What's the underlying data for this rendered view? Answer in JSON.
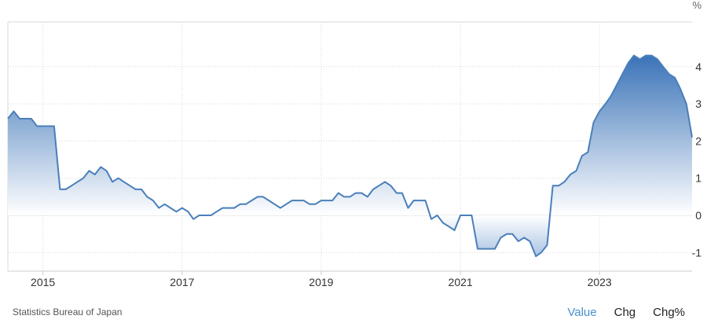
{
  "chart_data": {
    "type": "area",
    "unit_label": "%",
    "ylim": [
      -1.5,
      5.2
    ],
    "xlim": [
      "2014-07-01",
      "2024-05-01"
    ],
    "y_ticks": [
      -1,
      0,
      1,
      2,
      3,
      4
    ],
    "x_ticks": [
      {
        "date": "2015-01-01",
        "label": "2015"
      },
      {
        "date": "2017-01-01",
        "label": "2017"
      },
      {
        "date": "2019-01-01",
        "label": "2019"
      },
      {
        "date": "2021-01-01",
        "label": "2021"
      },
      {
        "date": "2023-01-01",
        "label": "2023"
      }
    ],
    "grid": true,
    "points": [
      [
        "2014-07-01",
        2.6
      ],
      [
        "2014-08-01",
        2.8
      ],
      [
        "2014-09-01",
        2.6
      ],
      [
        "2014-10-01",
        2.6
      ],
      [
        "2014-11-01",
        2.6
      ],
      [
        "2014-12-01",
        2.4
      ],
      [
        "2015-01-01",
        2.4
      ],
      [
        "2015-02-01",
        2.4
      ],
      [
        "2015-03-01",
        2.4
      ],
      [
        "2015-04-01",
        0.7
      ],
      [
        "2015-05-01",
        0.7
      ],
      [
        "2015-06-01",
        0.8
      ],
      [
        "2015-07-01",
        0.9
      ],
      [
        "2015-08-01",
        1.0
      ],
      [
        "2015-09-01",
        1.2
      ],
      [
        "2015-10-01",
        1.1
      ],
      [
        "2015-11-01",
        1.3
      ],
      [
        "2015-12-01",
        1.2
      ],
      [
        "2016-01-01",
        0.9
      ],
      [
        "2016-02-01",
        1.0
      ],
      [
        "2016-03-01",
        0.9
      ],
      [
        "2016-04-01",
        0.8
      ],
      [
        "2016-05-01",
        0.7
      ],
      [
        "2016-06-01",
        0.7
      ],
      [
        "2016-07-01",
        0.5
      ],
      [
        "2016-08-01",
        0.4
      ],
      [
        "2016-09-01",
        0.2
      ],
      [
        "2016-10-01",
        0.3
      ],
      [
        "2016-11-01",
        0.2
      ],
      [
        "2016-12-01",
        0.1
      ],
      [
        "2017-01-01",
        0.2
      ],
      [
        "2017-02-01",
        0.1
      ],
      [
        "2017-03-01",
        -0.1
      ],
      [
        "2017-04-01",
        0.0
      ],
      [
        "2017-05-01",
        0.0
      ],
      [
        "2017-06-01",
        0.0
      ],
      [
        "2017-07-01",
        0.1
      ],
      [
        "2017-08-01",
        0.2
      ],
      [
        "2017-09-01",
        0.2
      ],
      [
        "2017-10-01",
        0.2
      ],
      [
        "2017-11-01",
        0.3
      ],
      [
        "2017-12-01",
        0.3
      ],
      [
        "2018-01-01",
        0.4
      ],
      [
        "2018-02-01",
        0.5
      ],
      [
        "2018-03-01",
        0.5
      ],
      [
        "2018-04-01",
        0.4
      ],
      [
        "2018-05-01",
        0.3
      ],
      [
        "2018-06-01",
        0.2
      ],
      [
        "2018-07-01",
        0.3
      ],
      [
        "2018-08-01",
        0.4
      ],
      [
        "2018-09-01",
        0.4
      ],
      [
        "2018-10-01",
        0.4
      ],
      [
        "2018-11-01",
        0.3
      ],
      [
        "2018-12-01",
        0.3
      ],
      [
        "2019-01-01",
        0.4
      ],
      [
        "2019-02-01",
        0.4
      ],
      [
        "2019-03-01",
        0.4
      ],
      [
        "2019-04-01",
        0.6
      ],
      [
        "2019-05-01",
        0.5
      ],
      [
        "2019-06-01",
        0.5
      ],
      [
        "2019-07-01",
        0.6
      ],
      [
        "2019-08-01",
        0.6
      ],
      [
        "2019-09-01",
        0.5
      ],
      [
        "2019-10-01",
        0.7
      ],
      [
        "2019-11-01",
        0.8
      ],
      [
        "2019-12-01",
        0.9
      ],
      [
        "2020-01-01",
        0.8
      ],
      [
        "2020-02-01",
        0.6
      ],
      [
        "2020-03-01",
        0.6
      ],
      [
        "2020-04-01",
        0.2
      ],
      [
        "2020-05-01",
        0.4
      ],
      [
        "2020-06-01",
        0.4
      ],
      [
        "2020-07-01",
        0.4
      ],
      [
        "2020-08-01",
        -0.1
      ],
      [
        "2020-09-01",
        0.0
      ],
      [
        "2020-10-01",
        -0.2
      ],
      [
        "2020-11-01",
        -0.3
      ],
      [
        "2020-12-01",
        -0.4
      ],
      [
        "2021-01-01",
        0.0
      ],
      [
        "2021-02-01",
        0.0
      ],
      [
        "2021-03-01",
        0.0
      ],
      [
        "2021-04-01",
        -0.9
      ],
      [
        "2021-05-01",
        -0.9
      ],
      [
        "2021-06-01",
        -0.9
      ],
      [
        "2021-07-01",
        -0.9
      ],
      [
        "2021-08-01",
        -0.6
      ],
      [
        "2021-09-01",
        -0.5
      ],
      [
        "2021-10-01",
        -0.5
      ],
      [
        "2021-11-01",
        -0.7
      ],
      [
        "2021-12-01",
        -0.6
      ],
      [
        "2022-01-01",
        -0.7
      ],
      [
        "2022-02-01",
        -1.1
      ],
      [
        "2022-03-01",
        -1.0
      ],
      [
        "2022-04-01",
        -0.8
      ],
      [
        "2022-05-01",
        0.8
      ],
      [
        "2022-06-01",
        0.8
      ],
      [
        "2022-07-01",
        0.9
      ],
      [
        "2022-08-01",
        1.1
      ],
      [
        "2022-09-01",
        1.2
      ],
      [
        "2022-10-01",
        1.6
      ],
      [
        "2022-11-01",
        1.7
      ],
      [
        "2022-12-01",
        2.5
      ],
      [
        "2023-01-01",
        2.8
      ],
      [
        "2023-02-01",
        3.0
      ],
      [
        "2023-03-01",
        3.2
      ],
      [
        "2023-04-01",
        3.5
      ],
      [
        "2023-05-01",
        3.8
      ],
      [
        "2023-06-01",
        4.1
      ],
      [
        "2023-07-01",
        4.3
      ],
      [
        "2023-08-01",
        4.2
      ],
      [
        "2023-09-01",
        4.3
      ],
      [
        "2023-10-01",
        4.3
      ],
      [
        "2023-11-01",
        4.2
      ],
      [
        "2023-12-01",
        4.0
      ],
      [
        "2024-01-01",
        3.8
      ],
      [
        "2024-02-01",
        3.7
      ],
      [
        "2024-03-01",
        3.4
      ],
      [
        "2024-04-01",
        3.0
      ],
      [
        "2024-05-01",
        2.1
      ]
    ],
    "colors": {
      "line": "#4a7fba",
      "fill_top": "#3a73b8",
      "fill_zero": "#ffffff",
      "grid": "#d9d9d9"
    }
  },
  "source": "Statistics Bureau of Japan",
  "tabs": [
    {
      "label": "Value",
      "active": true
    },
    {
      "label": "Chg",
      "active": false
    },
    {
      "label": "Chg%",
      "active": false
    }
  ]
}
